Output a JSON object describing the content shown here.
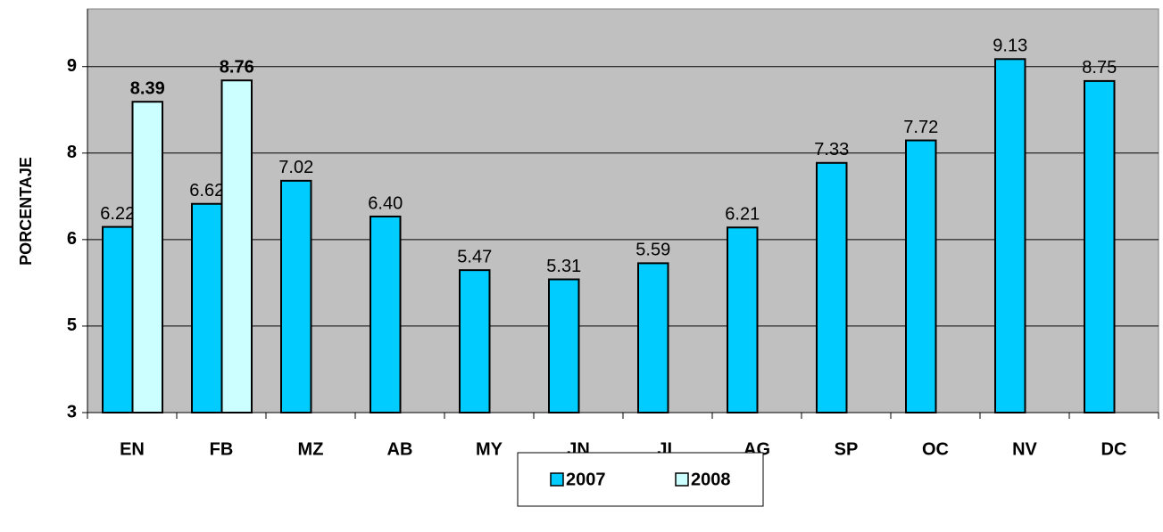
{
  "chart_data": {
    "type": "bar",
    "y_label": "PORCENTAJE",
    "categories": [
      "EN",
      "FB",
      "MZ",
      "AB",
      "MY",
      "JN",
      "JL",
      "AG",
      "SP",
      "OC",
      "NV",
      "DC"
    ],
    "series": [
      {
        "name": "2007",
        "color": "#00ccff",
        "values": [
          6.22,
          6.62,
          7.02,
          6.4,
          5.47,
          5.31,
          5.59,
          6.21,
          7.33,
          7.72,
          9.13,
          8.75
        ],
        "value_labels": [
          "6.22",
          "6.62",
          "7.02",
          "6.40",
          "5.47",
          "5.31",
          "5.59",
          "6.21",
          "7.33",
          "7.72",
          "9.13",
          "8.75"
        ]
      },
      {
        "name": "2008",
        "color": "#ccffff",
        "values": [
          8.39,
          8.76,
          null,
          null,
          null,
          null,
          null,
          null,
          null,
          null,
          null,
          null
        ],
        "value_labels": [
          "8.39",
          "8.76",
          null,
          null,
          null,
          null,
          null,
          null,
          null,
          null,
          null,
          null
        ]
      }
    ],
    "ylim": [
      3,
      10
    ],
    "yticks": [
      3,
      {
        "value": 4.5,
        "label": "5"
      },
      6,
      {
        "value": 7.5,
        "label": "8"
      },
      9
    ],
    "grid": true,
    "plot_background": "#c0c0c0",
    "legend": "bottom"
  }
}
